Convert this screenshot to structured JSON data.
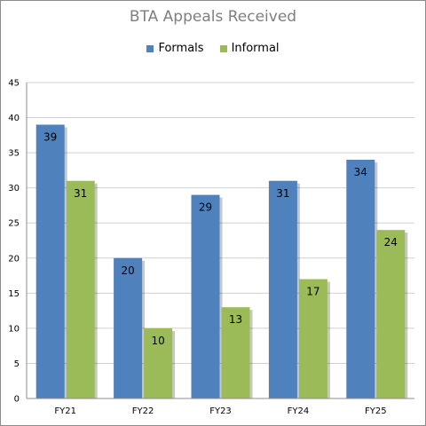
{
  "chart_data": {
    "type": "bar",
    "title": "BTA Appeals Received",
    "categories": [
      "FY21",
      "FY22",
      "FY23",
      "FY24",
      "FY25"
    ],
    "series": [
      {
        "name": "Formals",
        "values": [
          39,
          20,
          29,
          31,
          34
        ],
        "color": "#4f81bd"
      },
      {
        "name": "Informal",
        "values": [
          31,
          10,
          13,
          17,
          24
        ],
        "color": "#9bbb59"
      }
    ],
    "ylim": [
      0,
      45
    ],
    "yticks": [
      0,
      5,
      10,
      15,
      20,
      25,
      30,
      35,
      40,
      45
    ],
    "grid": true,
    "legend_position": "top",
    "data_labels": true
  }
}
